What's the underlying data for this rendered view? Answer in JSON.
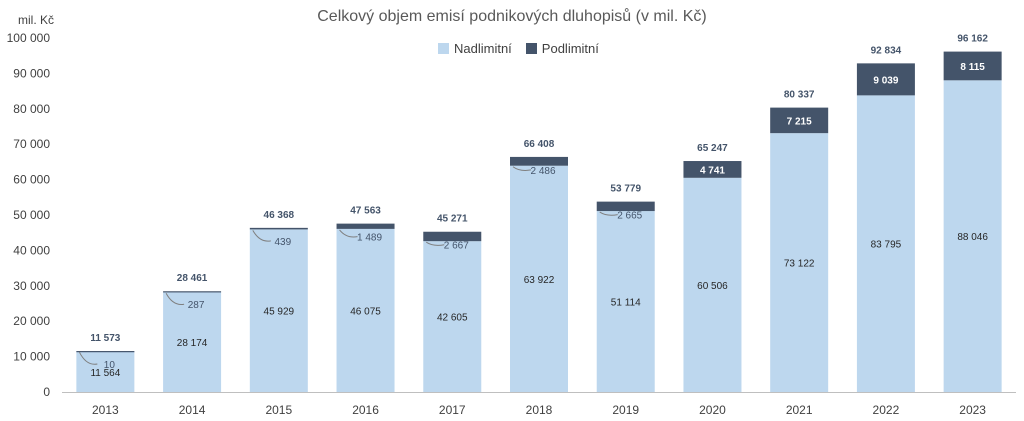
{
  "chart_data": {
    "type": "bar",
    "stacked": true,
    "title": "Celkový objem emisí podnikových dluhopisů (v mil. Kč)",
    "ylabel": "mil. Kč",
    "ylim": [
      0,
      100000
    ],
    "yticks": [
      "0",
      "10 000",
      "20 000",
      "30 000",
      "40 000",
      "50 000",
      "60 000",
      "70 000",
      "80 000",
      "90 000",
      "100 000"
    ],
    "categories": [
      "2013",
      "2014",
      "2015",
      "2016",
      "2017",
      "2018",
      "2019",
      "2020",
      "2021",
      "2022",
      "2023"
    ],
    "legend_position": "top-center",
    "grid": false,
    "series": [
      {
        "name": "Nadlimitní",
        "color": "#bdd7ee",
        "values": [
          11564,
          28174,
          45929,
          46075,
          42605,
          63922,
          51114,
          60506,
          73122,
          83795,
          88046
        ],
        "labels": [
          "11 564",
          "28 174",
          "45 929",
          "46 075",
          "42 605",
          "63 922",
          "51 114",
          "60 506",
          "73 122",
          "83 795",
          "88 046"
        ]
      },
      {
        "name": "Podlimitní",
        "color": "#44546a",
        "values": [
          10,
          287,
          439,
          1489,
          2667,
          2486,
          2665,
          4741,
          7215,
          9039,
          8115
        ],
        "labels": [
          "10",
          "287",
          "439",
          "1 489",
          "2 667",
          "2 486",
          "2 665",
          "4 741",
          "7 215",
          "9 039",
          "8 115"
        ]
      }
    ],
    "totals": [
      11573,
      28461,
      46368,
      47563,
      45271,
      66408,
      53779,
      65247,
      80337,
      92834,
      96162
    ],
    "total_labels": [
      "11 573",
      "28 461",
      "46 368",
      "47 563",
      "45 271",
      "66 408",
      "53 779",
      "65 247",
      "80 337",
      "92 834",
      "96 162"
    ]
  }
}
